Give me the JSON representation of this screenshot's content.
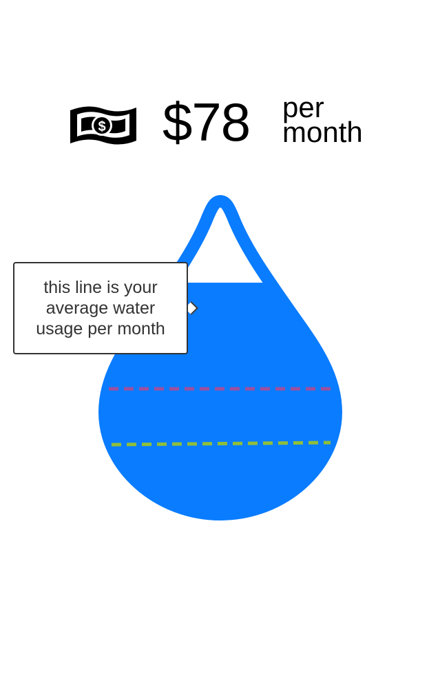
{
  "cost": {
    "amount": "$78",
    "unit_line1": "per",
    "unit_line2": "month",
    "icon": "money-bill-icon"
  },
  "drop": {
    "icon": "water-drop-icon",
    "fill_fraction": 0.74,
    "color": "#0a7cff",
    "lines": [
      {
        "color": "#9e4f9e"
      },
      {
        "color": "#8fbf3a"
      }
    ]
  },
  "tooltip": {
    "text": "this line is your average water usage per month"
  }
}
